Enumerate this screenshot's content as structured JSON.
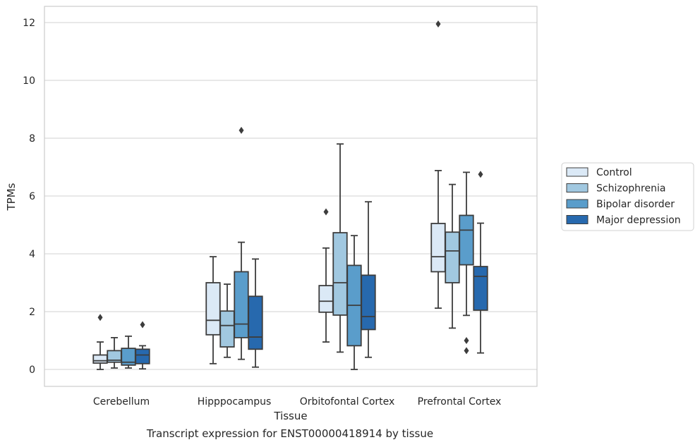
{
  "caption": "Transcript expression for ENST00000418914 by tissue",
  "chart_data": {
    "type": "box",
    "xlabel": "Tissue",
    "ylabel": "TPMs",
    "ylim": [
      -0.6,
      12.55
    ],
    "yticks": [
      0,
      2,
      4,
      6,
      8,
      10,
      12
    ],
    "grid": true,
    "legend_position": "right",
    "categories": [
      "Cerebellum",
      "Hipppocampus",
      "Orbitofontal Cortex",
      "Prefrontal Cortex"
    ],
    "series": [
      {
        "name": "Control",
        "color": "#dbe9f6",
        "boxes": [
          {
            "whisker_low": 0.0,
            "q1": 0.22,
            "median": 0.3,
            "q3": 0.5,
            "whisker_high": 0.95,
            "outliers": [
              1.8
            ]
          },
          {
            "whisker_low": 0.2,
            "q1": 1.2,
            "median": 1.7,
            "q3": 3.0,
            "whisker_high": 3.9,
            "outliers": []
          },
          {
            "whisker_low": 0.95,
            "q1": 1.98,
            "median": 2.36,
            "q3": 2.9,
            "whisker_high": 4.2,
            "outliers": [
              5.45
            ]
          },
          {
            "whisker_low": 2.12,
            "q1": 3.38,
            "median": 3.9,
            "q3": 5.05,
            "whisker_high": 6.88,
            "outliers": [
              11.95
            ]
          }
        ]
      },
      {
        "name": "Schizophrenia",
        "color": "#a1c8e0",
        "boxes": [
          {
            "whisker_low": 0.05,
            "q1": 0.25,
            "median": 0.32,
            "q3": 0.65,
            "whisker_high": 1.1,
            "outliers": []
          },
          {
            "whisker_low": 0.42,
            "q1": 0.78,
            "median": 1.52,
            "q3": 2.02,
            "whisker_high": 2.95,
            "outliers": []
          },
          {
            "whisker_low": 0.6,
            "q1": 1.88,
            "median": 3.0,
            "q3": 4.73,
            "whisker_high": 7.8,
            "outliers": []
          },
          {
            "whisker_low": 1.43,
            "q1": 3.0,
            "median": 4.1,
            "q3": 4.75,
            "whisker_high": 6.4,
            "outliers": []
          }
        ]
      },
      {
        "name": "Bipolar disorder",
        "color": "#5a9dcb",
        "boxes": [
          {
            "whisker_low": 0.05,
            "q1": 0.15,
            "median": 0.25,
            "q3": 0.73,
            "whisker_high": 1.15,
            "outliers": []
          },
          {
            "whisker_low": 0.35,
            "q1": 1.1,
            "median": 1.57,
            "q3": 3.38,
            "whisker_high": 4.4,
            "outliers": [
              8.27
            ]
          },
          {
            "whisker_low": 0.0,
            "q1": 0.82,
            "median": 2.22,
            "q3": 3.6,
            "whisker_high": 4.63,
            "outliers": []
          },
          {
            "whisker_low": 1.87,
            "q1": 3.62,
            "median": 4.82,
            "q3": 5.33,
            "whisker_high": 6.82,
            "outliers": [
              1.0,
              0.65
            ]
          }
        ]
      },
      {
        "name": "Major depression",
        "color": "#2769ae",
        "boxes": [
          {
            "whisker_low": 0.02,
            "q1": 0.2,
            "median": 0.5,
            "q3": 0.7,
            "whisker_high": 0.82,
            "outliers": [
              1.55
            ]
          },
          {
            "whisker_low": 0.08,
            "q1": 0.7,
            "median": 1.12,
            "q3": 2.53,
            "whisker_high": 3.82,
            "outliers": []
          },
          {
            "whisker_low": 0.42,
            "q1": 1.38,
            "median": 1.83,
            "q3": 3.26,
            "whisker_high": 5.8,
            "outliers": []
          },
          {
            "whisker_low": 0.57,
            "q1": 2.05,
            "median": 3.22,
            "q3": 3.56,
            "whisker_high": 5.06,
            "outliers": [
              6.75
            ]
          }
        ]
      }
    ]
  }
}
